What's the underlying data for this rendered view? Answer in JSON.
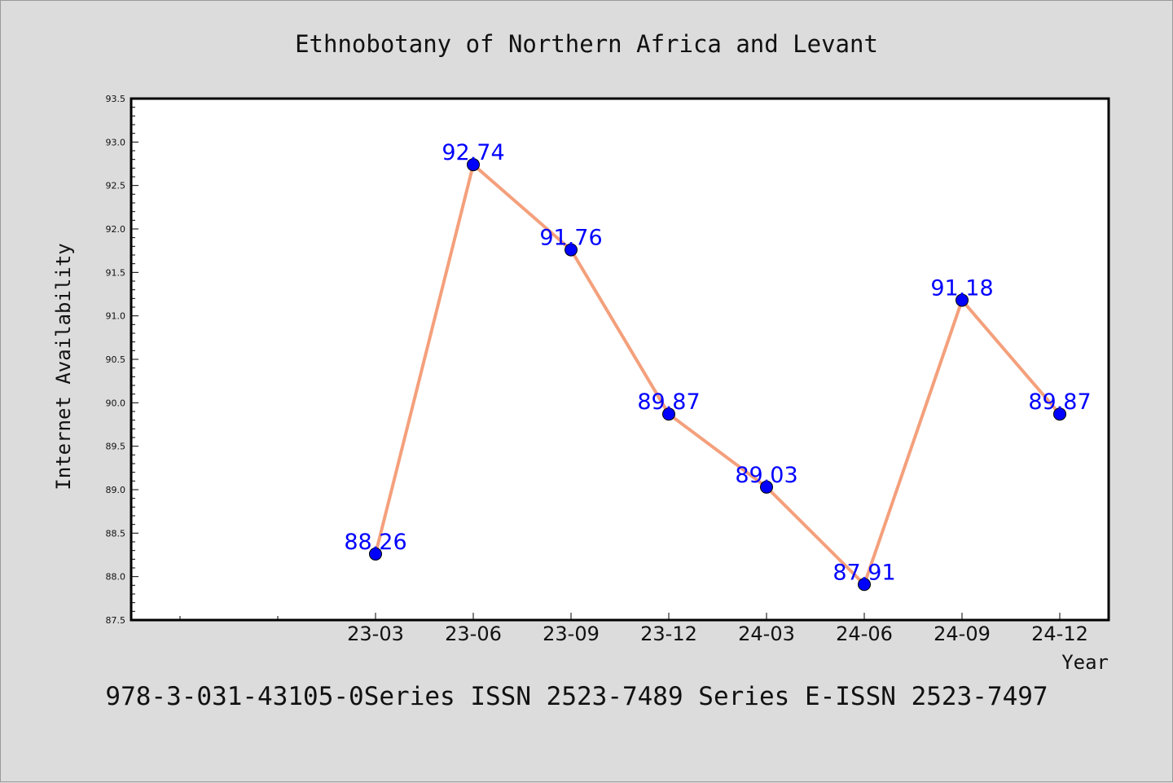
{
  "colors": {
    "background": "#dcdcdc",
    "plot_background": "#ffffff",
    "line": "#f4a07c",
    "marker": "#0000ff",
    "data_label": "#0000ff"
  },
  "chart_data": {
    "type": "line",
    "title": "Ethnobotany of Northern Africa and Levant",
    "xlabel": "Year",
    "ylabel": "Internet Availability",
    "footer": "978-3-031-43105-0Series ISSN 2523-7489 Series E-ISSN 2523-7497",
    "categories": [
      "23-03",
      "23-06",
      "23-09",
      "23-12",
      "24-03",
      "24-06",
      "24-09",
      "24-12"
    ],
    "series": [
      {
        "values": [
          88.26,
          92.74,
          91.76,
          89.87,
          89.03,
          87.91,
          91.18,
          89.87
        ]
      }
    ],
    "data_labels": [
      "88.26",
      "92.74",
      "91.76",
      "89.87",
      "89.03",
      "87.91",
      "91.18",
      "89.87"
    ],
    "ylim": [
      87.5,
      93.5
    ],
    "yticks": [
      "87.5",
      "88.0",
      "88.5",
      "89.0",
      "89.5",
      "90.0",
      "90.5",
      "91.0",
      "91.5",
      "92.0",
      "92.5",
      "93.0",
      "93.5"
    ],
    "grid": false,
    "legend": false
  }
}
